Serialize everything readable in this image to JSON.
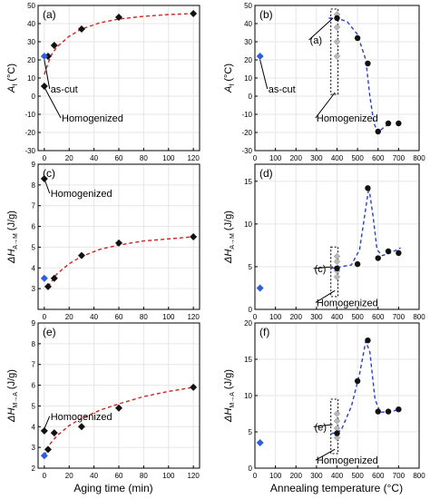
{
  "figure": {
    "x_axis_labels": [
      "Aging time (min)",
      "Annealing temperature (°C)"
    ]
  },
  "chart_data": [
    {
      "panel": "(a)",
      "type": "scatter",
      "ylabel_main": "A",
      "ylabel_sub": "f",
      "ylabel_unit": " (°C)",
      "xlim": [
        -5,
        125
      ],
      "ylim": [
        -30,
        50
      ],
      "xticks": [
        0,
        20,
        40,
        60,
        80,
        100,
        120
      ],
      "yticks": [
        -30,
        -20,
        -10,
        0,
        10,
        20,
        30,
        40,
        50
      ],
      "points": [
        [
          0,
          5.5
        ],
        [
          3,
          22
        ],
        [
          8,
          28
        ],
        [
          30,
          37
        ],
        [
          60,
          43.5
        ],
        [
          120,
          45.5
        ]
      ],
      "special_points": [
        [
          0,
          22
        ]
      ],
      "fit": [
        [
          0,
          12
        ],
        [
          5,
          22
        ],
        [
          10,
          27
        ],
        [
          20,
          33
        ],
        [
          30,
          37
        ],
        [
          45,
          40.5
        ],
        [
          60,
          42.5
        ],
        [
          80,
          44
        ],
        [
          100,
          45
        ],
        [
          120,
          45.5
        ]
      ],
      "annotations": [
        {
          "text": "as-cut",
          "x": 5,
          "y": 4,
          "tx": 0,
          "ty": 20
        },
        {
          "text": "Homogenized",
          "x": 14,
          "y": -12,
          "tx": 0,
          "ty": 5
        }
      ]
    },
    {
      "panel": "(b)",
      "type": "scatter",
      "ylabel_main": "A",
      "ylabel_sub": "f",
      "ylabel_unit": " (°C)",
      "xlim": [
        0,
        800
      ],
      "ylim": [
        -30,
        50
      ],
      "xticks": [
        0,
        100,
        200,
        300,
        400,
        500,
        600,
        700,
        800
      ],
      "yticks": [
        -30,
        -20,
        -10,
        0,
        10,
        20,
        30,
        40,
        50
      ],
      "points": [
        [
          400,
          43
        ],
        [
          500,
          32
        ],
        [
          550,
          18
        ],
        [
          600,
          -19.5
        ],
        [
          650,
          -15
        ],
        [
          700,
          -15
        ]
      ],
      "grey_points": [
        [
          400,
          45
        ],
        [
          400,
          38
        ],
        [
          400,
          30
        ],
        [
          400,
          22
        ]
      ],
      "special_points": [
        [
          25,
          22
        ]
      ],
      "fit": [
        [
          360,
          43
        ],
        [
          400,
          43
        ],
        [
          450,
          41
        ],
        [
          500,
          34
        ],
        [
          540,
          20
        ],
        [
          560,
          0
        ],
        [
          580,
          -15
        ],
        [
          600,
          -20
        ],
        [
          630,
          -17
        ],
        [
          650,
          -15.5
        ]
      ],
      "box": [
        [
          370,
          405
        ],
        [
          1,
          48
        ]
      ],
      "annotations": [
        {
          "text": "as-cut",
          "x": 65,
          "y": 4,
          "tx": 25,
          "ty": 20
        },
        {
          "text": "Homogenized",
          "x": 300,
          "y": -12,
          "tx": 390,
          "ty": 2
        },
        {
          "text": "(a)",
          "x": 268,
          "y": 31,
          "tx": 380,
          "ty": 43
        }
      ]
    },
    {
      "panel": "(c)",
      "type": "scatter",
      "ylabel_main": "ΔH",
      "ylabel_sub": "A→M",
      "ylabel_unit": " (J/g)",
      "xlim": [
        -5,
        125
      ],
      "ylim": [
        2,
        9
      ],
      "xticks": [
        0,
        20,
        40,
        60,
        80,
        100,
        120
      ],
      "yticks": [
        3,
        4,
        5,
        6,
        7,
        8,
        9
      ],
      "points": [
        [
          0,
          8.3
        ],
        [
          3,
          3.1
        ],
        [
          8,
          3.5
        ],
        [
          30,
          4.6
        ],
        [
          60,
          5.2
        ],
        [
          120,
          5.5
        ]
      ],
      "special_points": [
        [
          0,
          3.5
        ]
      ],
      "fit": [
        [
          3,
          3.1
        ],
        [
          10,
          3.7
        ],
        [
          20,
          4.2
        ],
        [
          30,
          4.55
        ],
        [
          45,
          4.9
        ],
        [
          60,
          5.1
        ],
        [
          80,
          5.3
        ],
        [
          100,
          5.4
        ],
        [
          120,
          5.5
        ]
      ],
      "annotations": [
        {
          "text": "Homogenized",
          "x": 5,
          "y": 7.6,
          "tx": 0,
          "ty": 8.3
        }
      ]
    },
    {
      "panel": "(d)",
      "type": "scatter",
      "ylabel_main": "ΔH",
      "ylabel_sub": "A→M",
      "ylabel_unit": " (J/g)",
      "xlim": [
        0,
        800
      ],
      "ylim": [
        0,
        17
      ],
      "xticks": [
        0,
        100,
        200,
        300,
        400,
        500,
        600,
        700,
        800
      ],
      "yticks": [
        0,
        5,
        10,
        15
      ],
      "points": [
        [
          400,
          4.8
        ],
        [
          500,
          5.3
        ],
        [
          550,
          14.2
        ],
        [
          600,
          6
        ],
        [
          650,
          6.8
        ],
        [
          700,
          6.6
        ]
      ],
      "grey_points": [
        [
          400,
          6.2
        ],
        [
          400,
          5.6
        ],
        [
          400,
          4.5
        ],
        [
          400,
          3.8
        ]
      ],
      "special_points": [
        [
          25,
          2.5
        ]
      ],
      "fit": [
        [
          370,
          4.8
        ],
        [
          420,
          5
        ],
        [
          470,
          5.2
        ],
        [
          510,
          7
        ],
        [
          535,
          11
        ],
        [
          555,
          14.3
        ],
        [
          575,
          11
        ],
        [
          595,
          7
        ],
        [
          620,
          6.3
        ],
        [
          660,
          6.6
        ],
        [
          710,
          7.2
        ]
      ],
      "box": [
        [
          370,
          405
        ],
        [
          1.5,
          7.3
        ]
      ],
      "annotations": [
        {
          "text": "Homogenized",
          "x": 300,
          "y": 0.8,
          "tx": 390,
          "ty": 2.2
        },
        {
          "text": "(c)",
          "x": 290,
          "y": 4.8,
          "tx": 380,
          "ty": 5
        }
      ]
    },
    {
      "panel": "(e)",
      "type": "scatter",
      "ylabel_main": "ΔH",
      "ylabel_sub": "M→A",
      "ylabel_unit": " (J/g)",
      "xlim": [
        -5,
        125
      ],
      "ylim": [
        2,
        9
      ],
      "xticks": [
        0,
        20,
        40,
        60,
        80,
        100,
        120
      ],
      "yticks": [
        2,
        3,
        4,
        5,
        6,
        7,
        8,
        9
      ],
      "points": [
        [
          0,
          3.8
        ],
        [
          3,
          2.9
        ],
        [
          8,
          3.7
        ],
        [
          30,
          4
        ],
        [
          60,
          4.9
        ],
        [
          120,
          5.9
        ]
      ],
      "special_points": [
        [
          0,
          2.6
        ]
      ],
      "fit": [
        [
          0,
          2.6
        ],
        [
          5,
          3.2
        ],
        [
          10,
          3.55
        ],
        [
          20,
          4.05
        ],
        [
          30,
          4.4
        ],
        [
          45,
          4.8
        ],
        [
          60,
          5.1
        ],
        [
          80,
          5.45
        ],
        [
          100,
          5.7
        ],
        [
          120,
          5.9
        ]
      ],
      "annotations": [
        {
          "text": "Homogenized",
          "x": 5,
          "y": 4.5,
          "tx": 0,
          "ty": 3.9
        }
      ]
    },
    {
      "panel": "(f)",
      "type": "scatter",
      "ylabel_main": "ΔH",
      "ylabel_sub": "M→A",
      "ylabel_unit": " (J/g)",
      "xlim": [
        0,
        800
      ],
      "ylim": [
        0,
        20
      ],
      "xticks": [
        0,
        100,
        200,
        300,
        400,
        500,
        600,
        700,
        800
      ],
      "yticks": [
        0,
        5,
        10,
        15,
        20
      ],
      "points": [
        [
          400,
          4.8
        ],
        [
          500,
          12
        ],
        [
          550,
          17.6
        ],
        [
          600,
          7.8
        ],
        [
          650,
          7.8
        ],
        [
          700,
          8.1
        ]
      ],
      "grey_points": [
        [
          400,
          7.5
        ],
        [
          400,
          6.5
        ],
        [
          400,
          5.5
        ],
        [
          400,
          4.2
        ]
      ],
      "special_points": [
        [
          25,
          3.5
        ]
      ],
      "fit": [
        [
          370,
          4.7
        ],
        [
          420,
          5.2
        ],
        [
          470,
          8.5
        ],
        [
          510,
          13
        ],
        [
          540,
          17.5
        ],
        [
          560,
          16
        ],
        [
          585,
          9.5
        ],
        [
          610,
          7.7
        ],
        [
          660,
          7.8
        ],
        [
          710,
          8.1
        ]
      ],
      "box": [
        [
          370,
          405
        ],
        [
          2,
          9.5
        ]
      ],
      "annotations": [
        {
          "text": "Homogenized",
          "x": 300,
          "y": 1.1,
          "tx": 390,
          "ty": 2.6
        },
        {
          "text": "(e)",
          "x": 290,
          "y": 5.7,
          "tx": 378,
          "ty": 6
        }
      ]
    }
  ]
}
